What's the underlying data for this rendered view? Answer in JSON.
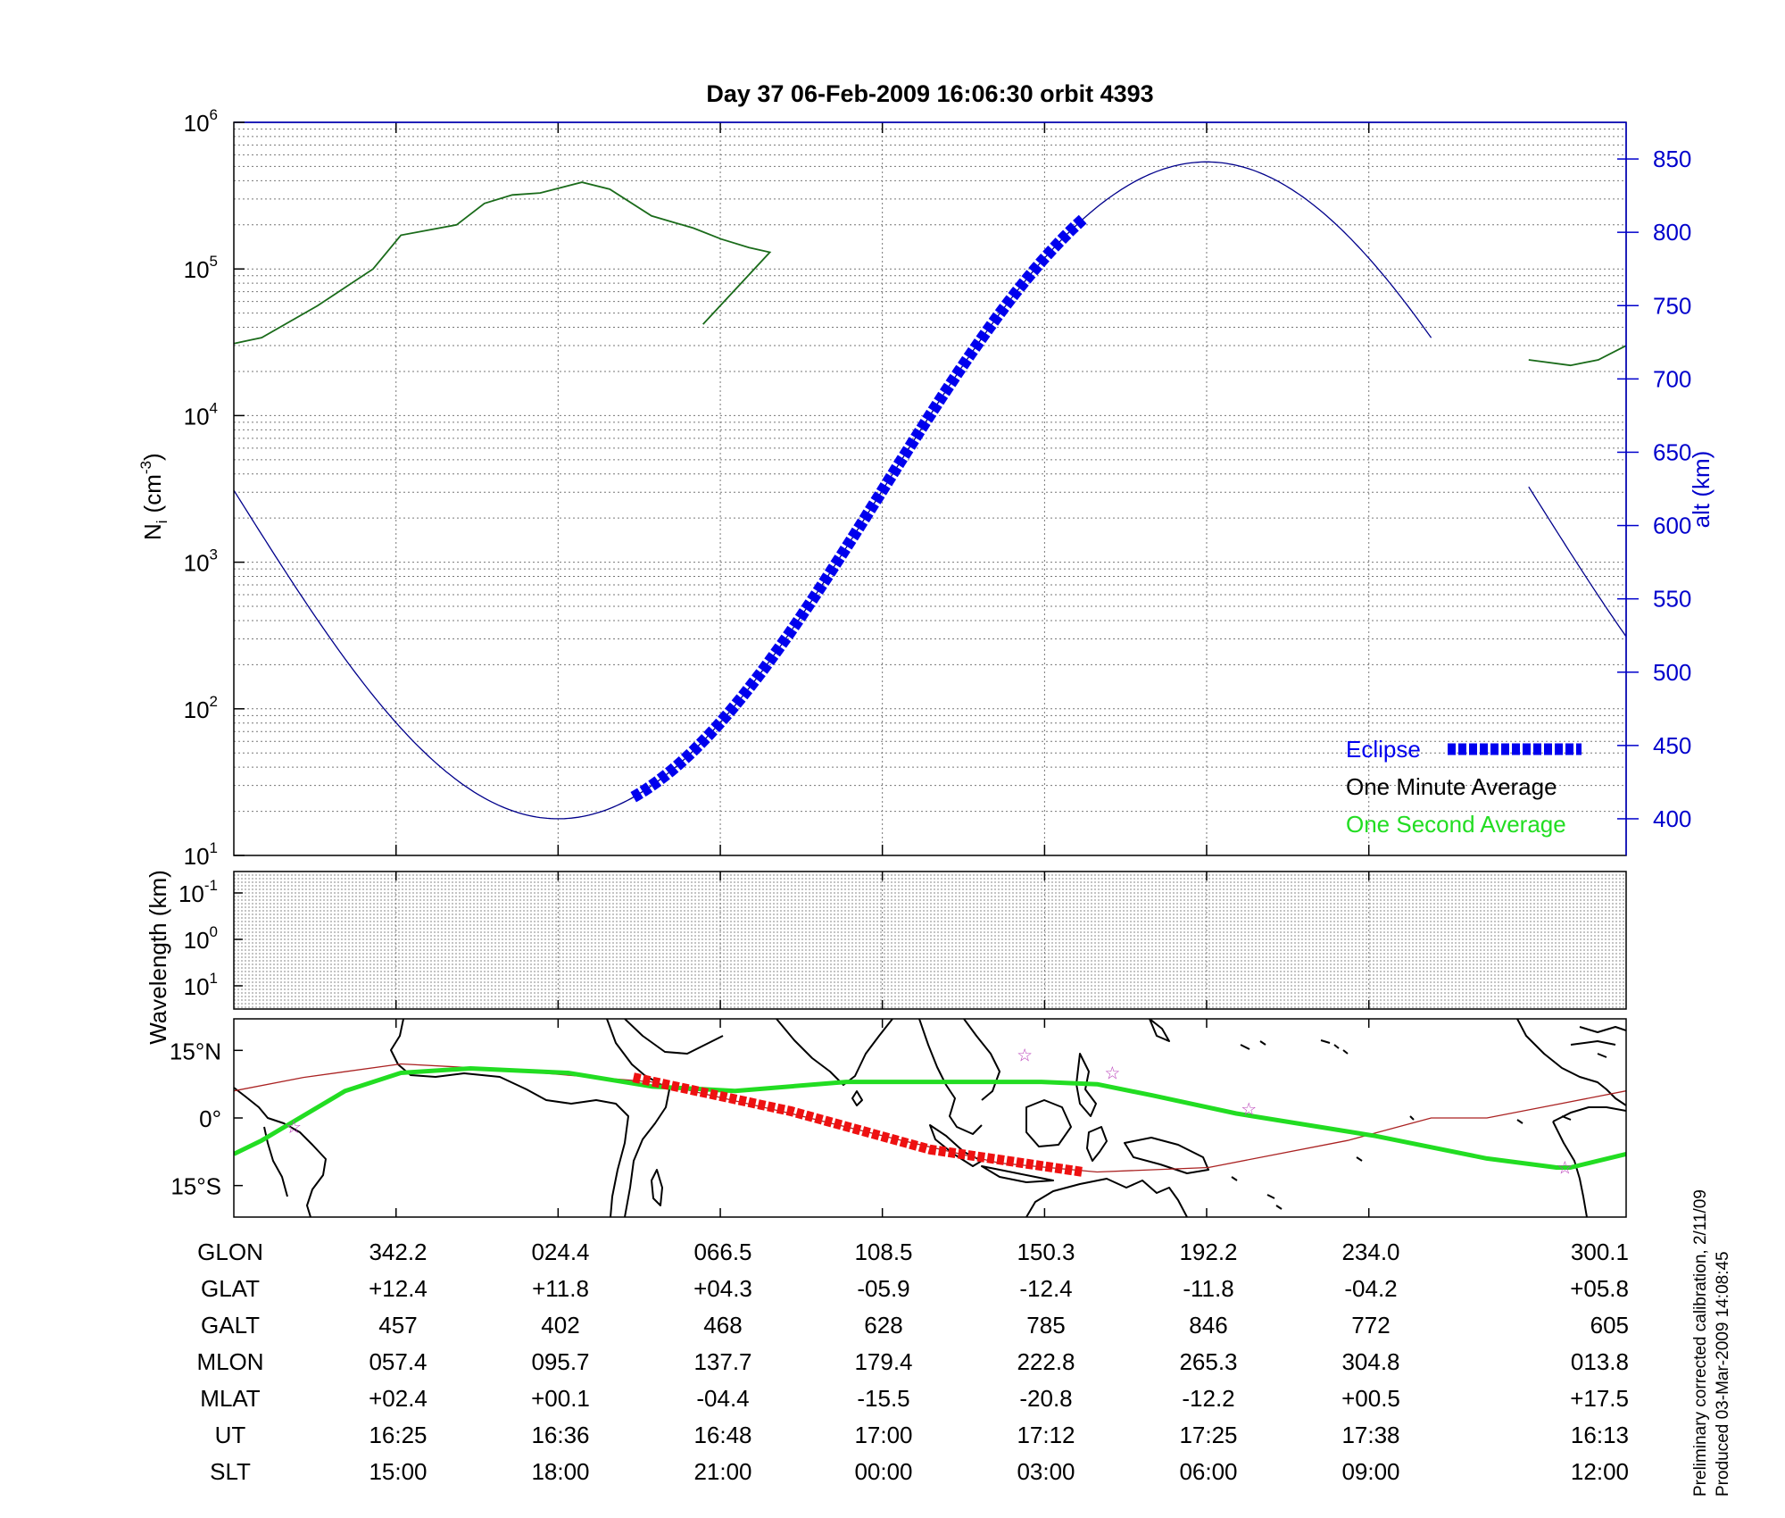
{
  "chart_data": [
    {
      "type": "line",
      "title": "Day 37  06-Feb-2009 16:06:30   orbit 4393",
      "ylabel": "N",
      "ylabel_sub": "i",
      "ylabel_unit_open": "(cm",
      "ylabel_unit_exp": "-3",
      "ylabel_unit_close": ")",
      "yscale": "log",
      "ylim": [
        10,
        1000000
      ],
      "ytick_base": "10",
      "ytick_exponents": [
        "1",
        "2",
        "3",
        "4",
        "5",
        "6"
      ],
      "y2label": "alt (km)",
      "y2lim": [
        375,
        875
      ],
      "y2ticks": [
        "400",
        "450",
        "500",
        "550",
        "600",
        "650",
        "700",
        "750",
        "800",
        "850"
      ],
      "grid": true,
      "legend_position": "lower-right",
      "legend": {
        "eclipse": "Eclipse",
        "minute": "One Minute Average",
        "second": "One Second Average"
      },
      "colors": {
        "altitude": "#00008b",
        "eclipse": "#0000ee",
        "density": "#1a6b1a",
        "second": "#22dd22",
        "axis_right": "#0000cc"
      },
      "series": [
        {
          "key": "altitude",
          "axis": "right",
          "t": [
            0,
            0.116,
            0.233,
            0.349,
            0.465,
            0.582,
            0.698,
            0.814,
            0.93,
            1
          ],
          "alt": [
            600,
            457,
            402,
            468,
            628,
            785,
            846,
            772,
            605,
            600
          ]
        },
        {
          "key": "eclipse",
          "axis": "right",
          "t": [
            0.287,
            0.61
          ]
        },
        {
          "key": "density",
          "axis": "left",
          "segments": [
            {
              "t": [
                0,
                0.02,
                0.06,
                0.1,
                0.12,
                0.16,
                0.18,
                0.2,
                0.22,
                0.25,
                0.27,
                0.3,
                0.33,
                0.35,
                0.37,
                0.385,
                0.337
              ],
              "y": [
                31000,
                34000,
                56000,
                100000,
                170000,
                200000,
                280000,
                320000,
                330000,
                390000,
                350000,
                230000,
                190000,
                160000,
                140000,
                130000,
                42000
              ]
            },
            {
              "t": [
                0.93,
                0.96,
                0.98,
                1
              ],
              "y": [
                24000,
                22000,
                24000,
                30000
              ]
            }
          ]
        }
      ]
    },
    {
      "type": "heatmap",
      "ylabel": "Wavelength (km)",
      "ytick_base": "10",
      "ytick_exponents": [
        "-1",
        "0",
        "1"
      ]
    },
    {
      "type": "map",
      "ytick_labels": [
        "15°N",
        "0°",
        "15°S"
      ],
      "latlim": [
        -22,
        22
      ],
      "colors": {
        "track": "#22dd22",
        "eclipse": "#ee1111",
        "magnetic_equator": "#aa2222",
        "stars": "#bb44bb"
      },
      "track": {
        "t": [
          0,
          0.02,
          0.08,
          0.12,
          0.17,
          0.24,
          0.3,
          0.36,
          0.44,
          0.5,
          0.58,
          0.62,
          0.66,
          0.72,
          0.82,
          0.9,
          0.95,
          0.96,
          1
        ],
        "lat": [
          -8,
          -5,
          6,
          10,
          11,
          10,
          7,
          6,
          8,
          8,
          8,
          7.5,
          5,
          1,
          -4,
          -9,
          -11,
          -11,
          -8
        ]
      },
      "eclipse_track": {
        "t": [
          0.287,
          0.4,
          0.5,
          0.61
        ],
        "lat": [
          9,
          1.5,
          -7,
          -12
        ]
      },
      "magnetic_equator": {
        "t": [
          0,
          0.05,
          0.12,
          0.18,
          0.3,
          0.4,
          0.48,
          0.55,
          0.62,
          0.7,
          0.8,
          0.86,
          0.9,
          0.95,
          1
        ],
        "lat": [
          6,
          9,
          12,
          11,
          8,
          1,
          -5,
          -10,
          -12,
          -11,
          -5,
          0,
          0,
          3,
          6
        ]
      },
      "stars_t": [
        0.043,
        0.568,
        0.631,
        0.729,
        0.956
      ],
      "stars_lat": [
        -2,
        14,
        10,
        2,
        -11
      ]
    }
  ],
  "orbit_table": {
    "rows": [
      {
        "label": "GLON",
        "values": [
          "342.2",
          "024.4",
          "066.5",
          "108.5",
          "150.3",
          "192.2",
          "234.0",
          "300.1"
        ]
      },
      {
        "label": "GLAT",
        "values": [
          "+12.4",
          "+11.8",
          "+04.3",
          "-05.9",
          "-12.4",
          "-11.8",
          "-04.2",
          "+05.8"
        ]
      },
      {
        "label": "GALT",
        "values": [
          "457",
          "402",
          "468",
          "628",
          "785",
          "846",
          "772",
          "605"
        ]
      },
      {
        "label": "MLON",
        "values": [
          "057.4",
          "095.7",
          "137.7",
          "179.4",
          "222.8",
          "265.3",
          "304.8",
          "013.8"
        ]
      },
      {
        "label": "MLAT",
        "values": [
          "+02.4",
          "+00.1",
          "-04.4",
          "-15.5",
          "-20.8",
          "-12.2",
          "+00.5",
          "+17.5"
        ]
      },
      {
        "label": "UT",
        "values": [
          "16:25",
          "16:36",
          "16:48",
          "17:00",
          "17:12",
          "17:25",
          "17:38",
          "16:13"
        ]
      },
      {
        "label": "SLT",
        "values": [
          "15:00",
          "18:00",
          "21:00",
          "00:00",
          "03:00",
          "06:00",
          "09:00",
          "12:00"
        ]
      }
    ]
  },
  "footnote": {
    "line1": "Preliminary corrected calibration, 2/11/09",
    "line2": "Produced 03-Mar-2009 14:08:45"
  }
}
